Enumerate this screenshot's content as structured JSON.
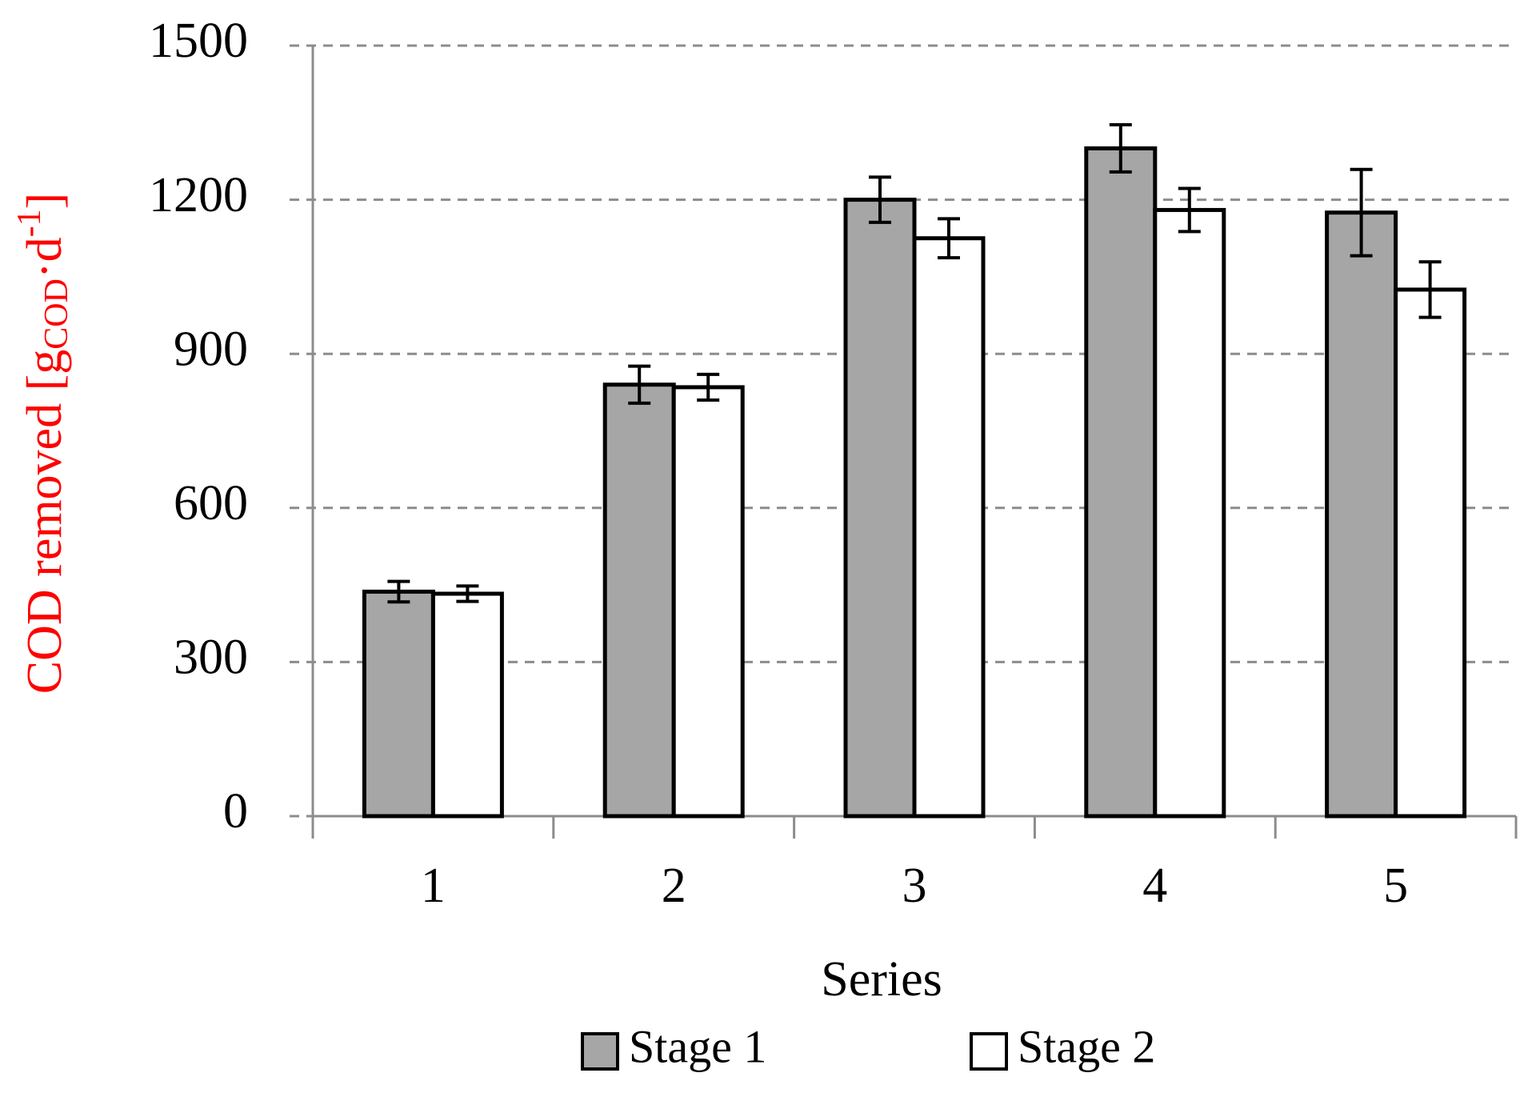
{
  "chart_data": {
    "type": "bar",
    "y_label": {
      "main": "COD removed [g",
      "sub": "COD",
      "mid": "·d",
      "sup": "-1",
      "end": "]"
    },
    "x_label": "Series",
    "categories": [
      "1",
      "2",
      "3",
      "4",
      "5"
    ],
    "series": [
      {
        "name": "Stage 1",
        "color": "#a6a6a6",
        "values": [
          437,
          840,
          1200,
          1300,
          1175
        ],
        "errors": [
          20,
          36,
          44,
          46,
          84
        ]
      },
      {
        "name": "Stage 2",
        "color": "#ffffff",
        "values": [
          433,
          835,
          1125,
          1180,
          1025
        ],
        "errors": [
          15,
          25,
          38,
          42,
          54
        ]
      }
    ],
    "ylim": [
      0,
      1500
    ],
    "yticks": [
      0,
      300,
      600,
      900,
      1200,
      1500
    ],
    "grid": true,
    "y_label_color": "#ff0000"
  }
}
